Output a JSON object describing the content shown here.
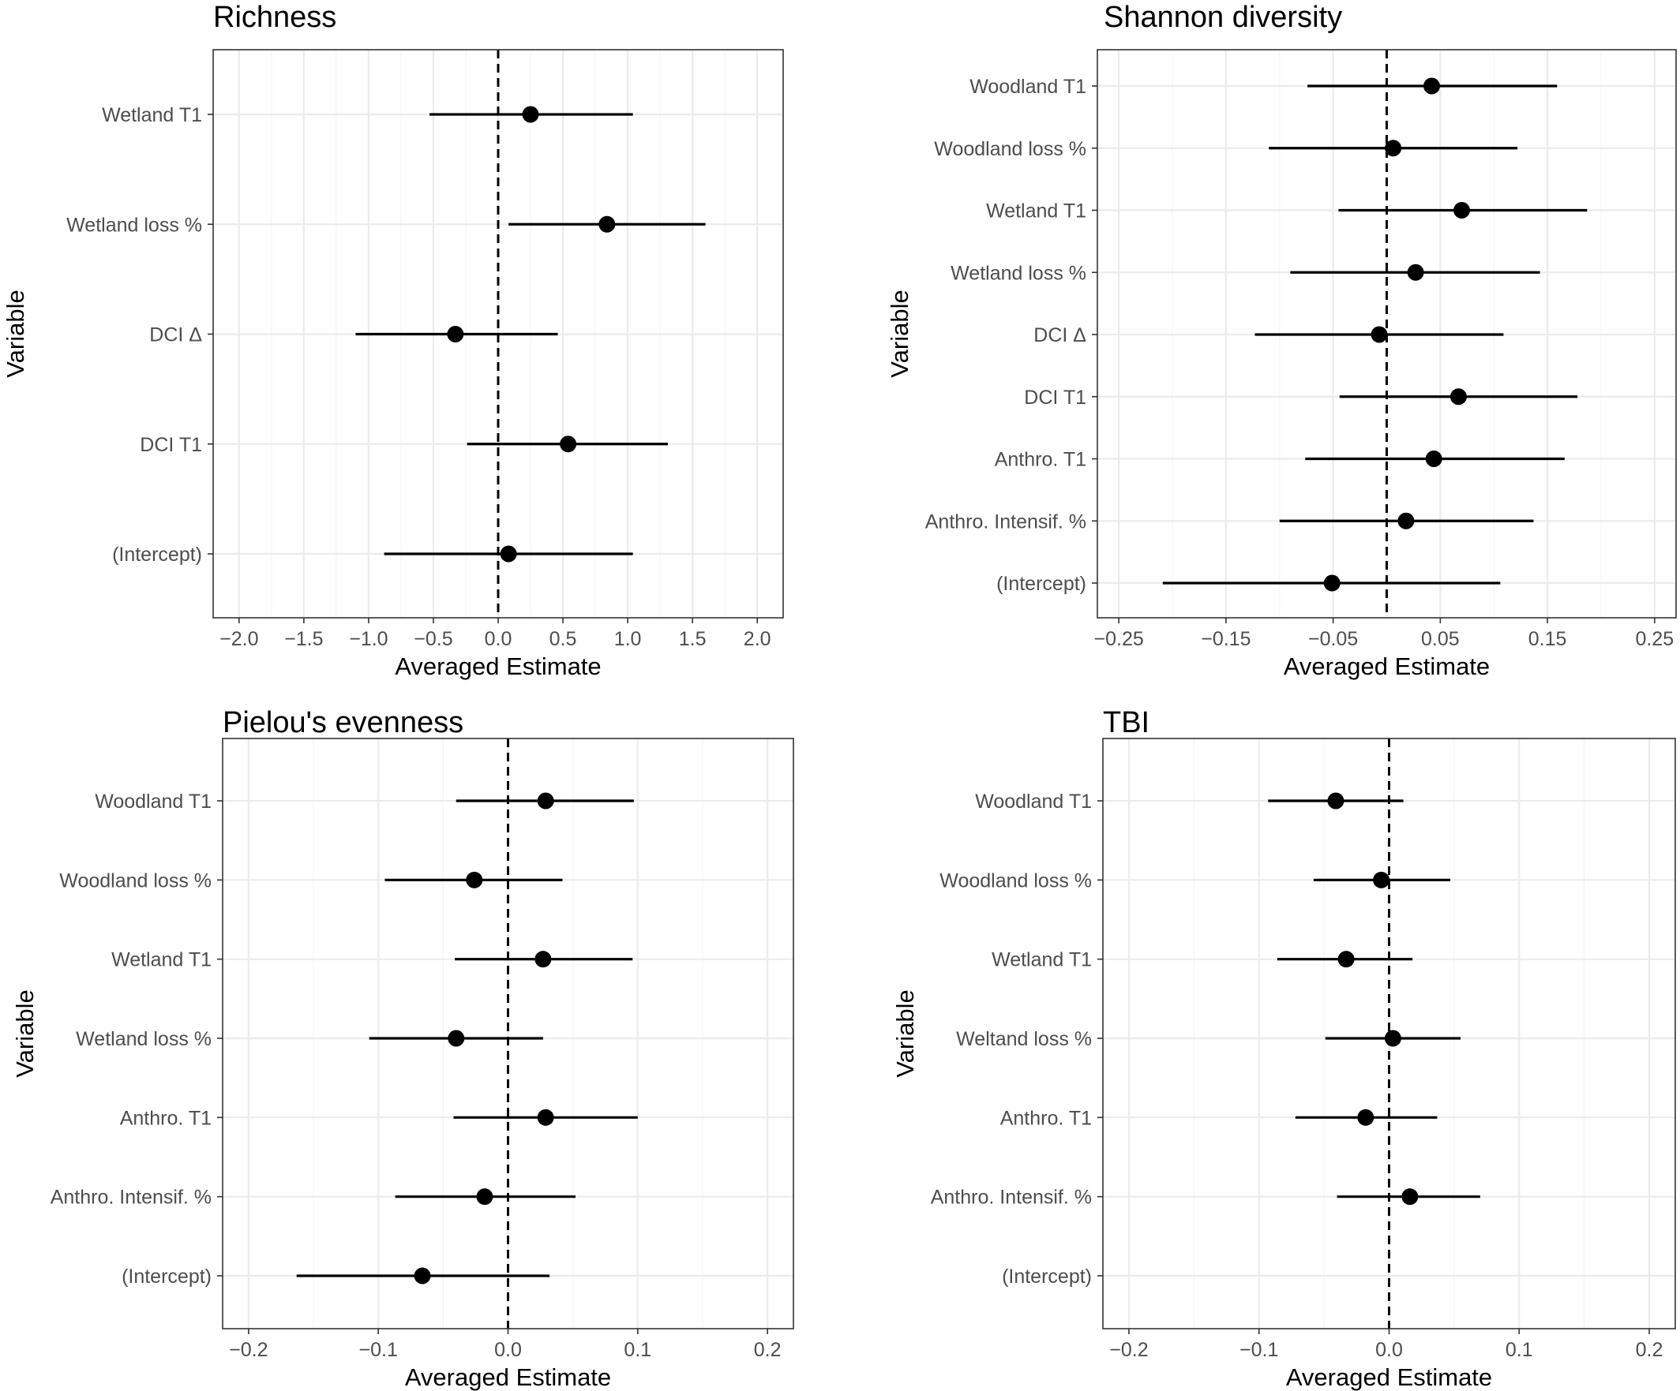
{
  "chart_data": [
    {
      "type": "scatter",
      "title": "Richness",
      "xlabel": "Averaged Estimate",
      "ylabel": "Variable",
      "xlim": [
        -2.2,
        2.2
      ],
      "xticks": [
        -2.0,
        -1.5,
        -1.0,
        -0.5,
        0.0,
        0.5,
        1.0,
        1.5,
        2.0
      ],
      "xtick_labels": [
        "−2.0",
        "−1.5",
        "−1.0",
        "−0.5",
        "0.0",
        "0.5",
        "1.0",
        "1.5",
        "2.0"
      ],
      "zero_line": 0,
      "variables": [
        "Wetland T1",
        "Wetland loss %",
        "DCI Δ",
        "DCI T1",
        "(Intercept)"
      ],
      "points": [
        {
          "variable": "Wetland T1",
          "estimate": 0.25,
          "lower": -0.53,
          "upper": 1.04
        },
        {
          "variable": "Wetland loss %",
          "estimate": 0.84,
          "lower": 0.08,
          "upper": 1.6
        },
        {
          "variable": "DCI Δ",
          "estimate": -0.33,
          "lower": -1.1,
          "upper": 0.46
        },
        {
          "variable": "DCI T1",
          "estimate": 0.54,
          "lower": -0.24,
          "upper": 1.31
        },
        {
          "variable": "(Intercept)",
          "estimate": 0.08,
          "lower": -0.88,
          "upper": 1.04
        }
      ]
    },
    {
      "type": "scatter",
      "title": "Shannon diversity",
      "xlabel": "Averaged Estimate",
      "ylabel": "Variable",
      "xlim": [
        -0.27,
        0.27
      ],
      "xticks": [
        -0.25,
        -0.15,
        -0.05,
        0.05,
        0.15,
        0.25
      ],
      "xtick_labels": [
        "−0.25",
        "−0.15",
        "−0.05",
        "0.05",
        "0.15",
        "0.25"
      ],
      "zero_line": 0,
      "variables": [
        "Woodland T1",
        "Woodland loss %",
        "Wetland T1",
        "Wetland loss %",
        "DCI Δ",
        "DCI T1",
        "Anthro. T1",
        "Anthro. Intensif. %",
        "(Intercept)"
      ],
      "points": [
        {
          "variable": "Woodland T1",
          "estimate": 0.042,
          "lower": -0.074,
          "upper": 0.159
        },
        {
          "variable": "Woodland loss %",
          "estimate": 0.006,
          "lower": -0.11,
          "upper": 0.122
        },
        {
          "variable": "Wetland T1",
          "estimate": 0.07,
          "lower": -0.045,
          "upper": 0.187
        },
        {
          "variable": "Wetland loss %",
          "estimate": 0.027,
          "lower": -0.09,
          "upper": 0.143
        },
        {
          "variable": "DCI Δ",
          "estimate": -0.007,
          "lower": -0.123,
          "upper": 0.109
        },
        {
          "variable": "DCI T1",
          "estimate": 0.067,
          "lower": -0.044,
          "upper": 0.178
        },
        {
          "variable": "Anthro. T1",
          "estimate": 0.044,
          "lower": -0.076,
          "upper": 0.166
        },
        {
          "variable": "Anthro. Intensif. %",
          "estimate": 0.018,
          "lower": -0.1,
          "upper": 0.137
        },
        {
          "variable": "(Intercept)",
          "estimate": -0.051,
          "lower": -0.209,
          "upper": 0.106
        }
      ]
    },
    {
      "type": "scatter",
      "title": "Pielou's evenness",
      "xlabel": "Averaged Estimate",
      "ylabel": "Variable",
      "xlim": [
        -0.22,
        0.22
      ],
      "xticks": [
        -0.2,
        -0.1,
        0.0,
        0.1,
        0.2
      ],
      "xtick_labels": [
        "−0.2",
        "−0.1",
        "0.0",
        "0.1",
        "0.2"
      ],
      "zero_line": 0,
      "variables": [
        "Woodland T1",
        "Woodland loss %",
        "Wetland T1",
        "Wetland loss %",
        "Anthro. T1",
        "Anthro. Intensif. %",
        "(Intercept)"
      ],
      "points": [
        {
          "variable": "Woodland T1",
          "estimate": 0.029,
          "lower": -0.04,
          "upper": 0.097
        },
        {
          "variable": "Woodland loss %",
          "estimate": -0.026,
          "lower": -0.095,
          "upper": 0.042
        },
        {
          "variable": "Wetland T1",
          "estimate": 0.027,
          "lower": -0.041,
          "upper": 0.096
        },
        {
          "variable": "Wetland loss %",
          "estimate": -0.04,
          "lower": -0.107,
          "upper": 0.027
        },
        {
          "variable": "Anthro. T1",
          "estimate": 0.029,
          "lower": -0.042,
          "upper": 0.1
        },
        {
          "variable": "Anthro. Intensif. %",
          "estimate": -0.018,
          "lower": -0.087,
          "upper": 0.052
        },
        {
          "variable": "(Intercept)",
          "estimate": -0.066,
          "lower": -0.163,
          "upper": 0.032
        }
      ]
    },
    {
      "type": "scatter",
      "title": "TBI",
      "xlabel": "Averaged Estimate",
      "ylabel": "Variable",
      "xlim": [
        -0.22,
        0.22
      ],
      "xticks": [
        -0.2,
        -0.1,
        0.0,
        0.1,
        0.2
      ],
      "xtick_labels": [
        "−0.2",
        "−0.1",
        "0.0",
        "0.1",
        "0.2"
      ],
      "zero_line": 0,
      "variables": [
        "Woodland T1",
        "Woodland loss %",
        "Wetland T1",
        "Weltand loss %",
        "Anthro. T1",
        "Anthro. Intensif. %",
        "(Intercept)"
      ],
      "points": [
        {
          "variable": "Woodland T1",
          "estimate": -0.041,
          "lower": -0.093,
          "upper": 0.011
        },
        {
          "variable": "Woodland loss %",
          "estimate": -0.006,
          "lower": -0.058,
          "upper": 0.047
        },
        {
          "variable": "Wetland T1",
          "estimate": -0.033,
          "lower": -0.086,
          "upper": 0.018
        },
        {
          "variable": "Weltand loss %",
          "estimate": 0.003,
          "lower": -0.049,
          "upper": 0.055
        },
        {
          "variable": "Anthro. T1",
          "estimate": -0.018,
          "lower": -0.072,
          "upper": 0.037
        },
        {
          "variable": "Anthro. Intensif. %",
          "estimate": 0.016,
          "lower": -0.04,
          "upper": 0.07
        },
        {
          "variable": "(Intercept)",
          "estimate": null,
          "lower": null,
          "upper": null
        }
      ]
    }
  ]
}
